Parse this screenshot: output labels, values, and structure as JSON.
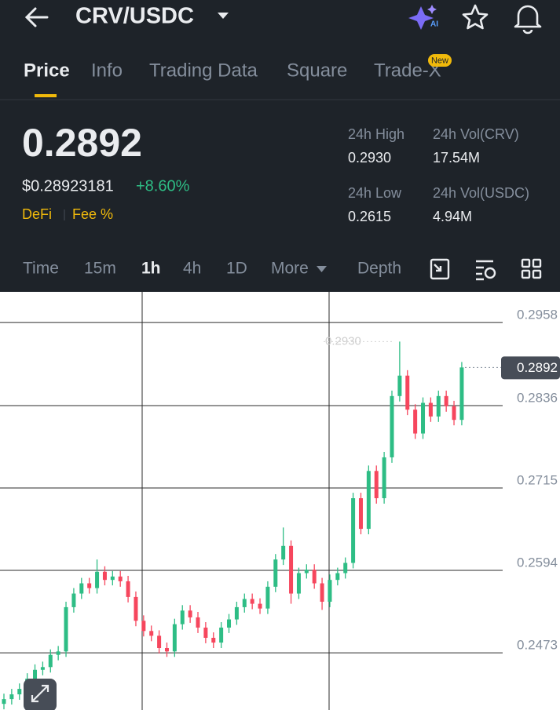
{
  "header": {
    "title": "CRV/USDC",
    "ai_badge": "AI"
  },
  "tabs": {
    "items": [
      "Price",
      "Info",
      "Trading Data",
      "Square",
      "Trade-X"
    ],
    "new_badge": "New"
  },
  "ticker": {
    "last_price": "0.2892",
    "usd_price": "$0.28923181",
    "change": "+8.60%",
    "tags": [
      "DeFi",
      "Fee %"
    ],
    "stats": [
      {
        "label": "24h High",
        "value": "0.2930"
      },
      {
        "label": "24h Vol(CRV)",
        "value": "17.54M"
      },
      {
        "label": "24h Low",
        "value": "0.2615"
      },
      {
        "label": "24h Vol(USDC)",
        "value": "4.94M"
      }
    ]
  },
  "intervals": [
    "Time",
    "15m",
    "1h",
    "4h",
    "1D",
    "More",
    "Depth"
  ],
  "chart_data": {
    "type": "candlestick",
    "open": [
      0.2398,
      0.2405,
      0.2412,
      0.242,
      0.2435,
      0.2448,
      0.2452,
      0.247,
      0.2475,
      0.254,
      0.256,
      0.2575,
      0.2568,
      0.2592,
      0.258,
      0.2585,
      0.2578,
      0.2555,
      0.252,
      0.2505,
      0.2498,
      0.248,
      0.2475,
      0.2515,
      0.2535,
      0.2525,
      0.251,
      0.2495,
      0.2488,
      0.251,
      0.2522,
      0.254,
      0.2552,
      0.2545,
      0.2538,
      0.257,
      0.261,
      0.263,
      0.256,
      0.259,
      0.2595,
      0.2575,
      0.2548,
      0.258,
      0.259,
      0.2605,
      0.27,
      0.2655,
      0.274,
      0.27,
      0.276,
      0.285,
      0.288,
      0.283,
      0.2795,
      0.284,
      0.282,
      0.285,
      0.2835,
      0.2815
    ],
    "high": [
      0.2413,
      0.242,
      0.2428,
      0.2443,
      0.2456,
      0.246,
      0.2478,
      0.2483,
      0.2548,
      0.2568,
      0.2583,
      0.2583,
      0.261,
      0.26,
      0.2593,
      0.2593,
      0.2586,
      0.2563,
      0.2528,
      0.2513,
      0.2506,
      0.2488,
      0.2523,
      0.2543,
      0.2543,
      0.2533,
      0.2518,
      0.2503,
      0.2518,
      0.253,
      0.2548,
      0.256,
      0.256,
      0.2553,
      0.2578,
      0.2618,
      0.2657,
      0.2638,
      0.2598,
      0.2603,
      0.2603,
      0.2583,
      0.2588,
      0.2598,
      0.2613,
      0.2708,
      0.2708,
      0.2748,
      0.2748,
      0.2768,
      0.2858,
      0.293,
      0.2888,
      0.2838,
      0.2848,
      0.2848,
      0.2858,
      0.2858,
      0.2843,
      0.29
    ],
    "low": [
      0.239,
      0.2397,
      0.2404,
      0.2412,
      0.2427,
      0.244,
      0.2444,
      0.2462,
      0.2467,
      0.2532,
      0.2552,
      0.256,
      0.256,
      0.2572,
      0.2572,
      0.257,
      0.2547,
      0.2512,
      0.2497,
      0.249,
      0.2472,
      0.2467,
      0.2467,
      0.2507,
      0.2517,
      0.2502,
      0.2487,
      0.248,
      0.248,
      0.2502,
      0.2514,
      0.2532,
      0.2537,
      0.253,
      0.253,
      0.2562,
      0.2602,
      0.2545,
      0.2552,
      0.2582,
      0.2567,
      0.2536,
      0.254,
      0.2572,
      0.2582,
      0.2597,
      0.2647,
      0.2647,
      0.2692,
      0.2692,
      0.2752,
      0.2842,
      0.2822,
      0.2787,
      0.2787,
      0.2812,
      0.2812,
      0.2827,
      0.2807,
      0.2807
    ],
    "close": [
      0.2405,
      0.2412,
      0.242,
      0.2435,
      0.2448,
      0.2452,
      0.247,
      0.2475,
      0.254,
      0.256,
      0.2575,
      0.2568,
      0.2592,
      0.258,
      0.2585,
      0.2578,
      0.2555,
      0.252,
      0.2505,
      0.2498,
      0.248,
      0.2475,
      0.2515,
      0.2535,
      0.2525,
      0.251,
      0.2495,
      0.2488,
      0.251,
      0.2522,
      0.254,
      0.2552,
      0.2545,
      0.2538,
      0.257,
      0.261,
      0.263,
      0.256,
      0.259,
      0.2595,
      0.2575,
      0.2548,
      0.258,
      0.259,
      0.2605,
      0.27,
      0.2655,
      0.274,
      0.27,
      0.276,
      0.285,
      0.288,
      0.283,
      0.2795,
      0.284,
      0.282,
      0.285,
      0.2835,
      0.2815,
      0.2892
    ],
    "up_color": "#2ebd85",
    "down_color": "#f6465d",
    "ylim": [
      0.2389,
      0.3003
    ],
    "yticks": [
      0.2958,
      0.2836,
      0.2715,
      0.2594,
      0.2473
    ],
    "grid": true,
    "high_marker": {
      "value": 0.293,
      "label": "0.2930"
    },
    "last_price_marker": {
      "value": 0.2892,
      "label": "0.2892"
    }
  }
}
